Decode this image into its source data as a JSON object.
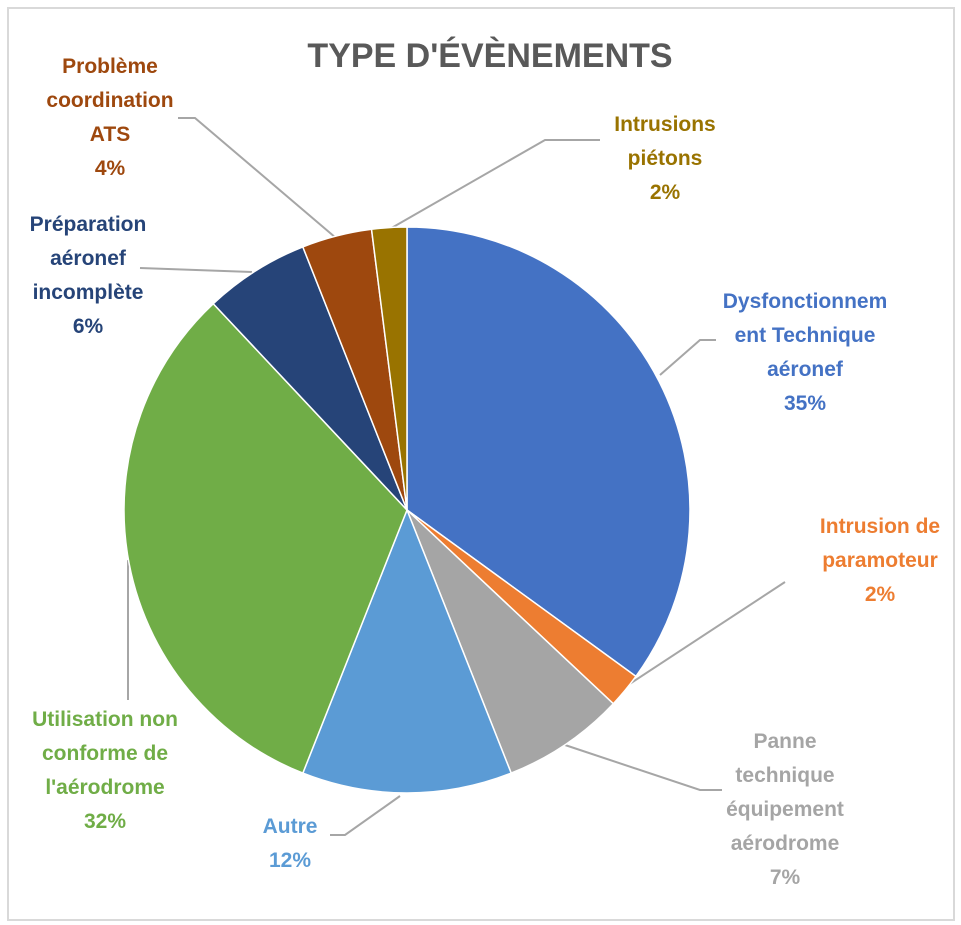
{
  "chart_data": {
    "type": "pie",
    "title": "TYPE D'ÉVÈNEMENTS",
    "categories": [
      "Dysfonctionnement Technique aéronef",
      "Intrusion de paramoteur",
      "Panne technique équipement aérodrome",
      "Autre",
      "Utilisation non conforme de l'aérodrome",
      "Préparation aéronef incomplète",
      "Problème coordination ATS",
      "Intrusions piétons"
    ],
    "values": [
      35,
      2,
      7,
      12,
      32,
      6,
      4,
      2
    ],
    "value_labels": [
      "35%",
      "2%",
      "7%",
      "12%",
      "32%",
      "6%",
      "4%",
      "2%"
    ],
    "colors": [
      "#4472c4",
      "#ed7d31",
      "#a5a5a5",
      "#5b9bd5",
      "#70ad47",
      "#264478",
      "#9e480e",
      "#997300"
    ]
  }
}
